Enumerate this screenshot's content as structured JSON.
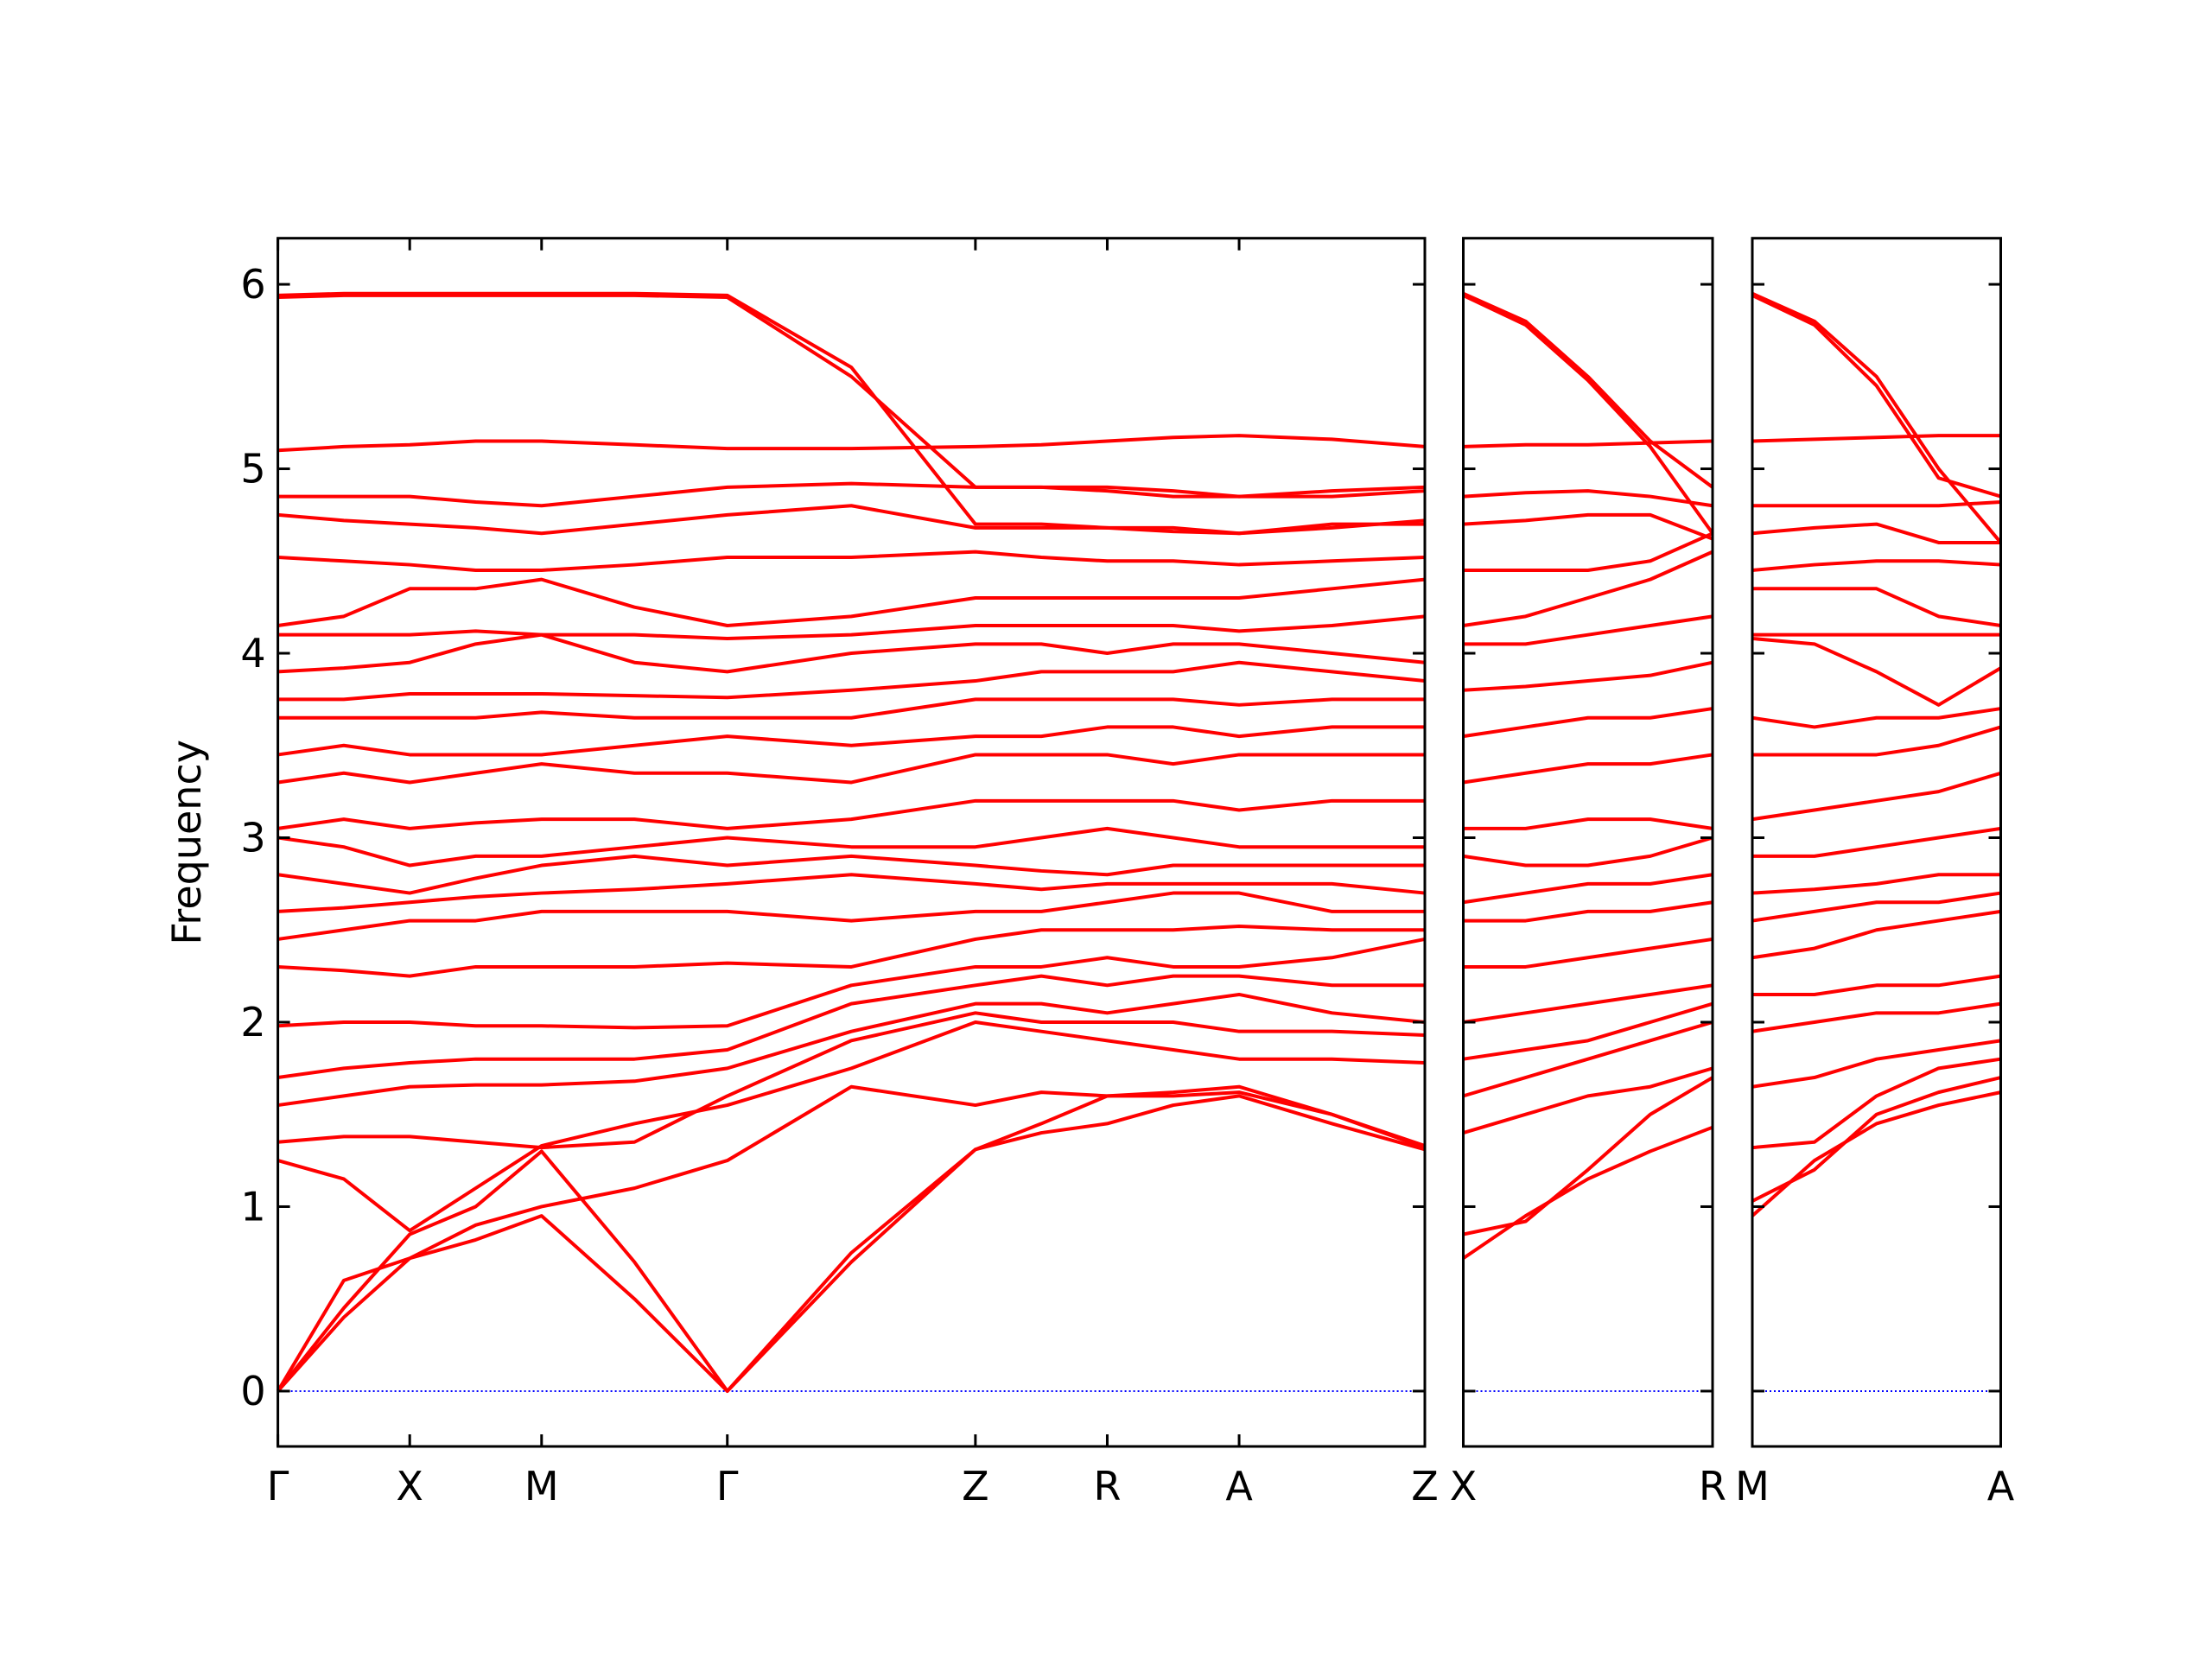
{
  "chart_data": [
    {
      "type": "line",
      "ylabel": "Frequency",
      "color": "#ff0000",
      "hline": 0,
      "hline_color": "#0000ff",
      "xlim": [
        0,
        8.09
      ],
      "ylim": [
        -0.3,
        6.25
      ],
      "xticks": [
        {
          "value": 0,
          "label": "Γ"
        },
        {
          "value": 0.93,
          "label": "X"
        },
        {
          "value": 1.86,
          "label": "M"
        },
        {
          "value": 3.17,
          "label": "Γ"
        },
        {
          "value": 4.92,
          "label": "Z"
        },
        {
          "value": 5.85,
          "label": "R"
        },
        {
          "value": 6.78,
          "label": "A"
        },
        {
          "value": 8.09,
          "label": "Z"
        }
      ],
      "yticks": [
        0,
        1,
        2,
        3,
        4,
        5,
        6
      ],
      "show_ytick_labels": true,
      "x": [
        0,
        0.465,
        0.93,
        1.395,
        1.86,
        2.515,
        3.17,
        4.045,
        4.92,
        5.385,
        5.85,
        6.315,
        6.78,
        7.435,
        8.09
      ],
      "series": [
        {
          "values": [
            0,
            0.4,
            0.72,
            0.82,
            0.95,
            0.5,
            0,
            0.7,
            1.31,
            1.4,
            1.45,
            1.55,
            1.6,
            1.45,
            1.31
          ]
        },
        {
          "values": [
            0,
            0.45,
            0.85,
            1.0,
            1.3,
            0.7,
            0,
            0.75,
            1.31,
            1.45,
            1.6,
            1.62,
            1.65,
            1.5,
            1.32
          ]
        },
        {
          "values": [
            0,
            0.6,
            0.72,
            0.9,
            1.0,
            1.1,
            1.25,
            1.65,
            1.55,
            1.62,
            1.6,
            1.6,
            1.62,
            1.5,
            1.33
          ]
        },
        {
          "values": [
            1.25,
            1.15,
            0.87,
            1.1,
            1.33,
            1.45,
            1.55,
            1.75,
            2.0,
            1.95,
            1.9,
            1.85,
            1.8,
            1.8,
            1.78
          ]
        },
        {
          "values": [
            1.35,
            1.38,
            1.38,
            1.35,
            1.32,
            1.35,
            1.6,
            1.9,
            2.05,
            2.0,
            2.0,
            2.0,
            1.95,
            1.95,
            1.93
          ]
        },
        {
          "values": [
            1.55,
            1.6,
            1.65,
            1.66,
            1.66,
            1.68,
            1.75,
            1.95,
            2.1,
            2.1,
            2.05,
            2.1,
            2.15,
            2.05,
            2.0
          ]
        },
        {
          "values": [
            1.7,
            1.75,
            1.78,
            1.8,
            1.8,
            1.8,
            1.85,
            2.1,
            2.2,
            2.25,
            2.2,
            2.25,
            2.25,
            2.2,
            2.2
          ]
        },
        {
          "values": [
            1.98,
            2.0,
            2.0,
            1.98,
            1.98,
            1.97,
            1.98,
            2.2,
            2.3,
            2.3,
            2.35,
            2.3,
            2.3,
            2.35,
            2.45
          ]
        },
        {
          "values": [
            2.3,
            2.28,
            2.25,
            2.3,
            2.3,
            2.3,
            2.32,
            2.3,
            2.45,
            2.5,
            2.5,
            2.5,
            2.52,
            2.5,
            2.5
          ]
        },
        {
          "values": [
            2.45,
            2.5,
            2.55,
            2.55,
            2.6,
            2.6,
            2.6,
            2.55,
            2.6,
            2.6,
            2.65,
            2.7,
            2.7,
            2.6,
            2.6
          ]
        },
        {
          "values": [
            2.6,
            2.62,
            2.65,
            2.68,
            2.7,
            2.72,
            2.75,
            2.8,
            2.75,
            2.72,
            2.75,
            2.75,
            2.75,
            2.75,
            2.7
          ]
        },
        {
          "values": [
            2.8,
            2.75,
            2.7,
            2.78,
            2.85,
            2.9,
            2.85,
            2.9,
            2.85,
            2.82,
            2.8,
            2.85,
            2.85,
            2.85,
            2.85
          ]
        },
        {
          "values": [
            3.0,
            2.95,
            2.85,
            2.9,
            2.9,
            2.95,
            3.0,
            2.95,
            2.95,
            3.0,
            3.05,
            3.0,
            2.95,
            2.95,
            2.95
          ]
        },
        {
          "values": [
            3.05,
            3.1,
            3.05,
            3.08,
            3.1,
            3.1,
            3.05,
            3.1,
            3.2,
            3.2,
            3.2,
            3.2,
            3.15,
            3.2,
            3.2
          ]
        },
        {
          "values": [
            3.3,
            3.35,
            3.3,
            3.35,
            3.4,
            3.35,
            3.35,
            3.3,
            3.45,
            3.45,
            3.45,
            3.4,
            3.45,
            3.45,
            3.45
          ]
        },
        {
          "values": [
            3.45,
            3.5,
            3.45,
            3.45,
            3.45,
            3.5,
            3.55,
            3.5,
            3.55,
            3.55,
            3.6,
            3.6,
            3.55,
            3.6,
            3.6
          ]
        },
        {
          "values": [
            3.65,
            3.65,
            3.65,
            3.65,
            3.68,
            3.65,
            3.65,
            3.65,
            3.75,
            3.75,
            3.75,
            3.75,
            3.72,
            3.75,
            3.75
          ]
        },
        {
          "values": [
            3.75,
            3.75,
            3.78,
            3.78,
            3.78,
            3.77,
            3.76,
            3.8,
            3.85,
            3.9,
            3.9,
            3.9,
            3.95,
            3.9,
            3.85
          ]
        },
        {
          "values": [
            3.9,
            3.92,
            3.95,
            4.05,
            4.1,
            3.95,
            3.9,
            4.0,
            4.05,
            4.05,
            4.0,
            4.05,
            4.05,
            4.0,
            3.95
          ]
        },
        {
          "values": [
            4.1,
            4.1,
            4.1,
            4.12,
            4.1,
            4.1,
            4.08,
            4.1,
            4.15,
            4.15,
            4.15,
            4.15,
            4.12,
            4.15,
            4.2
          ]
        },
        {
          "values": [
            4.15,
            4.2,
            4.35,
            4.35,
            4.4,
            4.25,
            4.15,
            4.2,
            4.3,
            4.3,
            4.3,
            4.3,
            4.3,
            4.35,
            4.4
          ]
        },
        {
          "values": [
            4.52,
            4.5,
            4.48,
            4.45,
            4.45,
            4.48,
            4.52,
            4.52,
            4.55,
            4.52,
            4.5,
            4.5,
            4.48,
            4.5,
            4.52
          ]
        },
        {
          "values": [
            4.75,
            4.72,
            4.7,
            4.68,
            4.65,
            4.7,
            4.75,
            4.8,
            4.68,
            4.68,
            4.68,
            4.68,
            4.65,
            4.7,
            4.7
          ]
        },
        {
          "values": [
            4.85,
            4.85,
            4.85,
            4.82,
            4.8,
            4.85,
            4.9,
            4.92,
            4.9,
            4.9,
            4.88,
            4.85,
            4.85,
            4.85,
            4.88
          ]
        },
        {
          "values": [
            5.1,
            5.12,
            5.13,
            5.15,
            5.15,
            5.13,
            5.11,
            5.11,
            5.12,
            5.13,
            5.15,
            5.17,
            5.18,
            5.16,
            5.12
          ]
        },
        {
          "values": [
            5.94,
            5.95,
            5.95,
            5.95,
            5.95,
            5.95,
            5.94,
            5.55,
            4.7,
            4.7,
            4.68,
            4.66,
            4.65,
            4.68,
            4.72
          ]
        },
        {
          "values": [
            5.93,
            5.94,
            5.94,
            5.94,
            5.94,
            5.94,
            5.93,
            5.5,
            4.9,
            4.9,
            4.9,
            4.88,
            4.85,
            4.88,
            4.9
          ]
        }
      ]
    },
    {
      "type": "line",
      "color": "#ff0000",
      "hline": 0,
      "hline_color": "#0000ff",
      "xlim": [
        0,
        1.76
      ],
      "ylim": [
        -0.3,
        6.25
      ],
      "xticks": [
        {
          "value": 0,
          "label": "X"
        },
        {
          "value": 1.76,
          "label": "R"
        }
      ],
      "yticks": [
        0,
        1,
        2,
        3,
        4,
        5,
        6
      ],
      "show_ytick_labels": false,
      "x": [
        0,
        0.44,
        0.88,
        1.32,
        1.76
      ],
      "series": [
        {
          "values": [
            0.72,
            0.95,
            1.15,
            1.3,
            1.43
          ]
        },
        {
          "values": [
            0.85,
            0.92,
            1.2,
            1.5,
            1.7
          ]
        },
        {
          "values": [
            1.4,
            1.5,
            1.6,
            1.65,
            1.75
          ]
        },
        {
          "values": [
            1.6,
            1.7,
            1.8,
            1.9,
            2.0
          ]
        },
        {
          "values": [
            1.8,
            1.85,
            1.9,
            2.0,
            2.1
          ]
        },
        {
          "values": [
            2.0,
            2.05,
            2.1,
            2.15,
            2.2
          ]
        },
        {
          "values": [
            2.3,
            2.3,
            2.35,
            2.4,
            2.45
          ]
        },
        {
          "values": [
            2.55,
            2.55,
            2.6,
            2.6,
            2.65
          ]
        },
        {
          "values": [
            2.65,
            2.7,
            2.75,
            2.75,
            2.8
          ]
        },
        {
          "values": [
            2.9,
            2.85,
            2.85,
            2.9,
            3.0
          ]
        },
        {
          "values": [
            3.05,
            3.05,
            3.1,
            3.1,
            3.05
          ]
        },
        {
          "values": [
            3.3,
            3.35,
            3.4,
            3.4,
            3.45
          ]
        },
        {
          "values": [
            3.55,
            3.6,
            3.65,
            3.65,
            3.7
          ]
        },
        {
          "values": [
            3.8,
            3.82,
            3.85,
            3.88,
            3.95
          ]
        },
        {
          "values": [
            4.05,
            4.05,
            4.1,
            4.15,
            4.2
          ]
        },
        {
          "values": [
            4.15,
            4.2,
            4.3,
            4.4,
            4.55
          ]
        },
        {
          "values": [
            4.45,
            4.45,
            4.45,
            4.5,
            4.65
          ]
        },
        {
          "values": [
            4.7,
            4.72,
            4.75,
            4.75,
            4.62
          ]
        },
        {
          "values": [
            4.85,
            4.87,
            4.88,
            4.85,
            4.8
          ]
        },
        {
          "values": [
            5.12,
            5.13,
            5.13,
            5.14,
            5.15
          ]
        },
        {
          "values": [
            5.95,
            5.8,
            5.5,
            5.15,
            4.9
          ]
        },
        {
          "values": [
            5.94,
            5.78,
            5.48,
            5.12,
            4.65
          ]
        }
      ]
    },
    {
      "type": "line",
      "color": "#ff0000",
      "hline": 0,
      "hline_color": "#0000ff",
      "xlim": [
        0,
        1.75
      ],
      "ylim": [
        -0.3,
        6.25
      ],
      "xticks": [
        {
          "value": 0,
          "label": "M"
        },
        {
          "value": 1.75,
          "label": "A"
        }
      ],
      "yticks": [
        0,
        1,
        2,
        3,
        4,
        5,
        6
      ],
      "show_ytick_labels": false,
      "x": [
        0,
        0.4375,
        0.875,
        1.3125,
        1.75
      ],
      "series": [
        {
          "values": [
            0.95,
            1.25,
            1.45,
            1.55,
            1.62
          ]
        },
        {
          "values": [
            1.03,
            1.2,
            1.5,
            1.62,
            1.7
          ]
        },
        {
          "values": [
            1.32,
            1.35,
            1.6,
            1.75,
            1.8
          ]
        },
        {
          "values": [
            1.65,
            1.7,
            1.8,
            1.85,
            1.9
          ]
        },
        {
          "values": [
            1.95,
            2.0,
            2.05,
            2.05,
            2.1
          ]
        },
        {
          "values": [
            2.15,
            2.15,
            2.2,
            2.2,
            2.25
          ]
        },
        {
          "values": [
            2.35,
            2.4,
            2.5,
            2.55,
            2.6
          ]
        },
        {
          "values": [
            2.55,
            2.6,
            2.65,
            2.65,
            2.7
          ]
        },
        {
          "values": [
            2.7,
            2.72,
            2.75,
            2.8,
            2.8
          ]
        },
        {
          "values": [
            2.9,
            2.9,
            2.95,
            3.0,
            3.05
          ]
        },
        {
          "values": [
            3.1,
            3.15,
            3.2,
            3.25,
            3.35
          ]
        },
        {
          "values": [
            3.45,
            3.45,
            3.45,
            3.5,
            3.6
          ]
        },
        {
          "values": [
            3.65,
            3.6,
            3.65,
            3.65,
            3.7
          ]
        },
        {
          "values": [
            4.08,
            4.05,
            3.9,
            3.72,
            3.92
          ]
        },
        {
          "values": [
            4.1,
            4.1,
            4.1,
            4.1,
            4.1
          ]
        },
        {
          "values": [
            4.35,
            4.35,
            4.35,
            4.2,
            4.15
          ]
        },
        {
          "values": [
            4.45,
            4.48,
            4.5,
            4.5,
            4.48
          ]
        },
        {
          "values": [
            4.65,
            4.68,
            4.7,
            4.6,
            4.6
          ]
        },
        {
          "values": [
            4.8,
            4.8,
            4.8,
            4.8,
            4.82
          ]
        },
        {
          "values": [
            5.15,
            5.16,
            5.17,
            5.18,
            5.18
          ]
        },
        {
          "values": [
            5.95,
            5.8,
            5.5,
            5.0,
            4.6
          ]
        },
        {
          "values": [
            5.94,
            5.78,
            5.45,
            4.95,
            4.85
          ]
        }
      ]
    }
  ]
}
